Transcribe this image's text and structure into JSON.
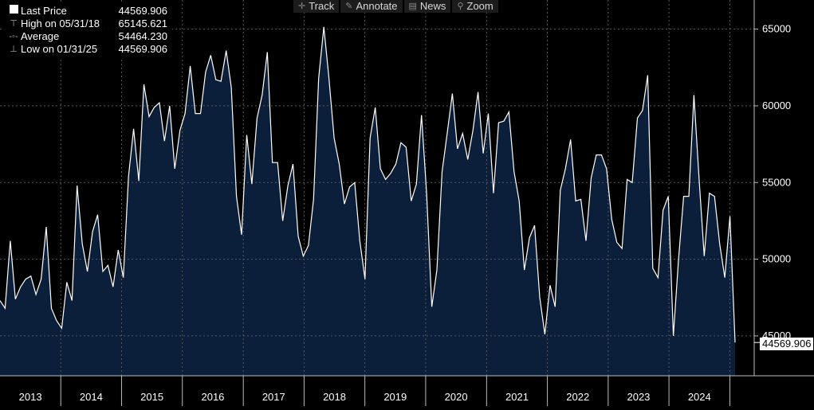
{
  "toolbar": {
    "items": [
      {
        "label": "Track",
        "icon": "crosshair-icon"
      },
      {
        "label": "Annotate",
        "icon": "pencil-icon"
      },
      {
        "label": "News",
        "icon": "news-icon"
      },
      {
        "label": "Zoom",
        "icon": "magnifier-icon"
      }
    ]
  },
  "legend": {
    "rows": [
      {
        "label": "Last Price",
        "value": "44569.906",
        "icon": "square-icon"
      },
      {
        "label": "High on 05/31/18",
        "value": "65145.621",
        "icon": "high-marker-icon"
      },
      {
        "label": "Average",
        "value": "54464.230",
        "icon": "average-line-icon"
      },
      {
        "label": "Low on 01/31/25",
        "value": "44569.906",
        "icon": "low-marker-icon"
      }
    ]
  },
  "last_price_label": "44569.906",
  "colors": {
    "background": "#000000",
    "fill": "#0b1e3a",
    "line": "#ffffff",
    "grid": "#5a5a5a",
    "text": "#ffffff"
  },
  "chart_data": {
    "type": "area",
    "xlabel": "",
    "ylabel": "",
    "x_ticks": [
      "2013",
      "2014",
      "2015",
      "2016",
      "2017",
      "2018",
      "2019",
      "2020",
      "2021",
      "2022",
      "2023",
      "2024"
    ],
    "y_ticks": [
      "65000",
      "60000",
      "55000",
      "50000",
      "45000"
    ],
    "ylim": [
      42400,
      66900
    ],
    "x_start": "2012-12-31",
    "x_end": "2025-01-31",
    "frequency": "monthly",
    "grid": true,
    "series": [
      {
        "name": "Last Price",
        "values": [
          47300,
          46800,
          51200,
          47400,
          48200,
          48700,
          48900,
          47700,
          48700,
          52100,
          46800,
          46000,
          45500,
          48500,
          47300,
          54800,
          51000,
          49200,
          51800,
          52900,
          49200,
          49600,
          48200,
          50600,
          48800,
          55400,
          58500,
          55100,
          61400,
          59300,
          59900,
          60200,
          57700,
          60000,
          55900,
          58400,
          59500,
          62600,
          59500,
          59500,
          62200,
          63300,
          61700,
          61600,
          63600,
          61200,
          54100,
          51600,
          58100,
          54900,
          59200,
          60700,
          63500,
          56300,
          56300,
          52500,
          54800,
          56200,
          51500,
          50200,
          50900,
          53900,
          61800,
          65145.621,
          61800,
          57900,
          56200,
          53600,
          54700,
          55000,
          51200,
          48700,
          57900,
          59900,
          55900,
          55200,
          55600,
          56200,
          57600,
          57300,
          53800,
          54900,
          59400,
          54300,
          46900,
          49300,
          55700,
          58200,
          60800,
          57200,
          58200,
          56500,
          58400,
          60900,
          56900,
          59500,
          54300,
          58900,
          59000,
          59600,
          55700,
          53800,
          49300,
          51400,
          52200,
          47500,
          45100,
          48300,
          46900,
          54500,
          55900,
          57800,
          53800,
          53900,
          51200,
          55300,
          56800,
          56800,
          55900,
          52600,
          51100,
          50700,
          55200,
          55000,
          59200,
          59700,
          62000,
          49400,
          48800,
          53200,
          54100,
          45000,
          50000,
          54100,
          54100,
          60700,
          55200,
          50200,
          54300,
          54100,
          51000,
          48800,
          52800,
          44569.906
        ]
      }
    ],
    "high": {
      "date": "05/31/18",
      "value": 65145.621
    },
    "low": {
      "date": "01/31/25",
      "value": 44569.906
    },
    "average": 54464.23,
    "last": 44569.906
  }
}
